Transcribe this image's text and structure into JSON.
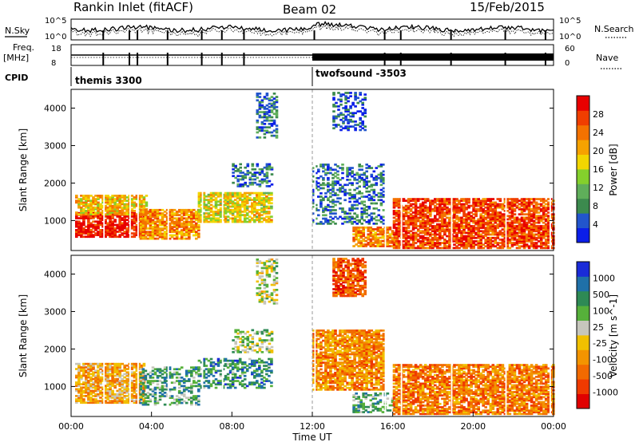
{
  "header": {
    "station": "Rankin Inlet (fitACF)",
    "beam": "Beam 02",
    "date": "15/Feb/2015"
  },
  "top_panels": {
    "nsky_label": "N.Sky",
    "nsearch_label": "N.Search",
    "noise_ticks": [
      "10^5",
      "10^0"
    ],
    "freq_label_1": "Freq.",
    "freq_label_2": "[MHz]",
    "freq_ticks": [
      "18",
      "8"
    ],
    "nave_label": "Nave",
    "nave_ticks": [
      "60",
      "0"
    ],
    "cpid_label": "CPID",
    "cpid_modes": [
      {
        "name": "themis 3300",
        "start_hour": 0
      },
      {
        "name": "twofsound -3503",
        "start_hour": 12
      }
    ]
  },
  "chart_data": [
    {
      "type": "heatmap",
      "title": "",
      "xlabel": "",
      "ylabel": "Slant Range [km]",
      "ylim": [
        200,
        4500
      ],
      "yticks": [
        "1000",
        "2000",
        "3000",
        "4000"
      ],
      "colorbar": {
        "label": "Power [dB]",
        "ticks": [
          "4",
          "8",
          "12",
          "16",
          "20",
          "24",
          "28"
        ],
        "colors": [
          "#0b1ee8",
          "#2255cc",
          "#3c8a4e",
          "#5fae5a",
          "#84d02c",
          "#f2d600",
          "#f6a200",
          "#f47200",
          "#f03e00",
          "#e80000"
        ]
      },
      "regions": [
        {
          "t0": 0.2,
          "t1": 3.6,
          "r0": 550,
          "r1": 1200,
          "bin": 0.95
        },
        {
          "t0": 0.2,
          "t1": 3.8,
          "r0": 1150,
          "r1": 1650,
          "bin": 0.62
        },
        {
          "t0": 3.4,
          "t1": 6.4,
          "r0": 500,
          "r1": 1300,
          "bin": 0.7
        },
        {
          "t0": 6.3,
          "t1": 10.0,
          "r0": 950,
          "r1": 1750,
          "bin": 0.55
        },
        {
          "t0": 8.0,
          "t1": 10.0,
          "r0": 1900,
          "r1": 2500,
          "bin": 0.2
        },
        {
          "t0": 12.0,
          "t1": 15.5,
          "r0": 900,
          "r1": 2500,
          "bin": 0.2
        },
        {
          "t0": 14.0,
          "t1": 16.2,
          "r0": 300,
          "r1": 800,
          "bin": 0.72
        },
        {
          "t0": 16.0,
          "t1": 24.0,
          "r0": 250,
          "r1": 1600,
          "bin": 0.84
        },
        {
          "t0": 9.2,
          "t1": 10.2,
          "r0": 3200,
          "r1": 4400,
          "bin": 0.2
        },
        {
          "t0": 13.0,
          "t1": 14.6,
          "r0": 3400,
          "r1": 4400,
          "bin": 0.1
        }
      ]
    },
    {
      "type": "heatmap",
      "title": "",
      "xlabel": "Time UT",
      "ylabel": "Slant Range [km]",
      "ylim": [
        200,
        4500
      ],
      "yticks": [
        "1000",
        "2000",
        "3000",
        "4000"
      ],
      "xticks": [
        "00:00",
        "04:00",
        "08:00",
        "12:00",
        "16:00",
        "20:00",
        "00:00"
      ],
      "xlim": [
        0,
        24
      ],
      "colorbar": {
        "label": "Velocity [m s^-1]",
        "ticks": [
          "1000",
          "500",
          "100",
          "25",
          "-25",
          "-100",
          "-500",
          "-1000"
        ],
        "colors": [
          "#1a2bd8",
          "#1f70a8",
          "#2e8a55",
          "#56b03a",
          "#c6c6bc",
          "#f1c000",
          "#f39400",
          "#f26a00",
          "#ef3a00",
          "#e00000"
        ]
      },
      "regions": [
        {
          "t0": 0.2,
          "t1": 3.6,
          "r0": 550,
          "r1": 1600,
          "bin": 0.62
        },
        {
          "t0": 3.4,
          "t1": 6.4,
          "r0": 500,
          "r1": 1500,
          "bin": 0.28
        },
        {
          "t0": 6.3,
          "t1": 10.0,
          "r0": 950,
          "r1": 1750,
          "bin": 0.25
        },
        {
          "t0": 8.0,
          "t1": 10.0,
          "r0": 1900,
          "r1": 2500,
          "bin": 0.42
        },
        {
          "t0": 12.0,
          "t1": 15.5,
          "r0": 900,
          "r1": 2500,
          "bin": 0.68
        },
        {
          "t0": 14.0,
          "t1": 16.2,
          "r0": 300,
          "r1": 800,
          "bin": 0.28
        },
        {
          "t0": 16.0,
          "t1": 24.0,
          "r0": 250,
          "r1": 1600,
          "bin": 0.72
        },
        {
          "t0": 9.2,
          "t1": 10.2,
          "r0": 3200,
          "r1": 4400,
          "bin": 0.45
        },
        {
          "t0": 13.0,
          "t1": 14.6,
          "r0": 3400,
          "r1": 4400,
          "bin": 0.8
        }
      ]
    }
  ]
}
